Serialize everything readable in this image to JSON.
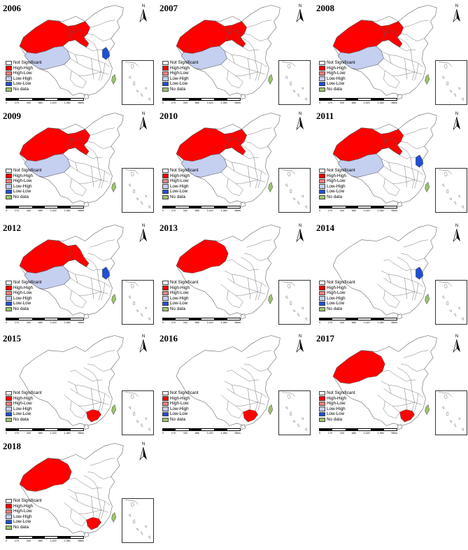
{
  "colors": {
    "not_significant": "#ffffff",
    "high_high": "#ff0000",
    "high_low": "#f08080",
    "low_high": "#c5cff0",
    "low_low": "#1f4fd6",
    "no_data": "#9cc56a",
    "border": "#555555"
  },
  "north_label": "N",
  "scale_labels": [
    "0",
    "170",
    "340",
    "680",
    "1,020",
    "1,360"
  ],
  "scale_unit": "Miles",
  "legend": [
    {
      "label": "Not Significant",
      "color_key": "not_significant"
    },
    {
      "label": "High-High",
      "color_key": "high_high"
    },
    {
      "label": "High-Low",
      "color_key": "high_low"
    },
    {
      "label": "Low-High",
      "color_key": "low_high"
    },
    {
      "label": "Low-Low",
      "color_key": "low_low"
    },
    {
      "label": "No data",
      "color_key": "no_data"
    }
  ],
  "panels": [
    {
      "year": "2006",
      "high_high": [
        "Xinjiang",
        "Gansu",
        "Inner Mongolia west"
      ],
      "low_high": [
        "Tibet"
      ],
      "low_low": [
        "Jiangsu"
      ],
      "no_data": [
        "Taiwan"
      ]
    },
    {
      "year": "2007",
      "high_high": [
        "Xinjiang",
        "Gansu",
        "Inner Mongolia west"
      ],
      "low_high": [
        "Tibet"
      ],
      "low_low": [],
      "no_data": [
        "Taiwan"
      ]
    },
    {
      "year": "2008",
      "high_high": [
        "Xinjiang",
        "Gansu",
        "Inner Mongolia west"
      ],
      "low_high": [
        "Tibet"
      ],
      "low_low": [],
      "no_data": [
        "Taiwan"
      ]
    },
    {
      "year": "2009",
      "high_high": [
        "Xinjiang",
        "Gansu",
        "Inner Mongolia west"
      ],
      "low_high": [
        "Tibet"
      ],
      "low_low": [],
      "no_data": [
        "Taiwan"
      ]
    },
    {
      "year": "2010",
      "high_high": [
        "Xinjiang",
        "Gansu",
        "Inner Mongolia west"
      ],
      "low_high": [
        "Tibet"
      ],
      "low_low": [],
      "no_data": [
        "Taiwan"
      ]
    },
    {
      "year": "2011",
      "high_high": [
        "Xinjiang",
        "Gansu",
        "Inner Mongolia west"
      ],
      "low_high": [
        "Tibet"
      ],
      "low_low": [
        "Jiangsu"
      ],
      "no_data": [
        "Taiwan"
      ]
    },
    {
      "year": "2012",
      "high_high": [
        "Xinjiang",
        "Gansu"
      ],
      "low_high": [
        "Tibet"
      ],
      "low_low": [
        "Jiangsu"
      ],
      "no_data": [
        "Taiwan"
      ]
    },
    {
      "year": "2013",
      "high_high": [
        "Xinjiang"
      ],
      "low_high": [],
      "low_low": [],
      "no_data": [
        "Taiwan"
      ]
    },
    {
      "year": "2014",
      "high_high": [],
      "low_high": [],
      "low_low": [
        "Jiangsu"
      ],
      "no_data": [
        "Taiwan"
      ]
    },
    {
      "year": "2015",
      "high_high": [
        "Guangdong"
      ],
      "low_high": [],
      "low_low": [],
      "no_data": [
        "Taiwan"
      ]
    },
    {
      "year": "2016",
      "high_high": [
        "Guangdong"
      ],
      "low_high": [],
      "low_low": [],
      "no_data": [
        "Taiwan"
      ]
    },
    {
      "year": "2017",
      "high_high": [
        "Xinjiang",
        "Guangdong"
      ],
      "low_high": [],
      "low_low": [],
      "no_data": [
        "Taiwan"
      ]
    },
    {
      "year": "2018",
      "high_high": [
        "Xinjiang",
        "Guangdong"
      ],
      "low_high": [],
      "low_low": [],
      "no_data": [
        "Taiwan"
      ]
    }
  ]
}
